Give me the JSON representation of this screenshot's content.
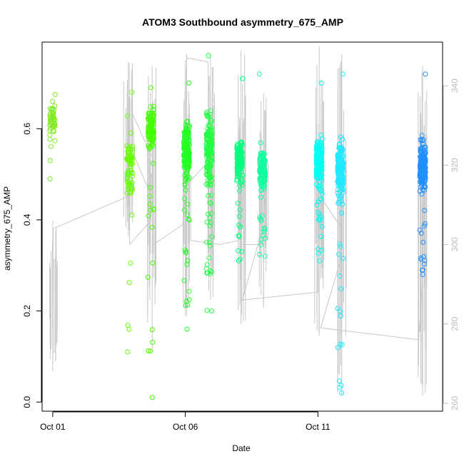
{
  "chart_data": {
    "type": "scatter",
    "title": "ATOM3 Southbound asymmetry_675_AMP",
    "xlabel": "Date",
    "ylabel": "asymmetry_675_AMP",
    "x_ticks": [
      "Oct 01",
      "Oct 06",
      "Oct 11"
    ],
    "x_tick_days": [
      1,
      6,
      11
    ],
    "xlim_days": [
      0.6,
      15.7
    ],
    "ylim": [
      -0.02,
      0.79
    ],
    "y_ticks": [
      0.0,
      0.2,
      0.4,
      0.6
    ],
    "y_tick_labels": [
      "0.0",
      "0.2",
      "0.4",
      "0.6"
    ],
    "y2_lim": [
      258,
      351
    ],
    "y2_ticks": [
      260,
      280,
      300,
      320,
      340
    ],
    "y2_tick_labels": [
      "260",
      "280",
      "300",
      "320",
      "340"
    ],
    "grid": false,
    "legend": "none",
    "series": [
      {
        "role": "points",
        "axis": "left",
        "colors_by_day": "green-to-blue gradient",
        "clusters": [
          {
            "day": 1.0,
            "color": "#7fea1f",
            "center": 0.62,
            "spread": 0.045,
            "min": 0.49,
            "max": 0.675,
            "n": 45
          },
          {
            "day": 3.9,
            "color": "#66ff00",
            "center": 0.52,
            "spread": 0.11,
            "min": 0.11,
            "max": 0.68,
            "n": 70
          },
          {
            "day": 4.7,
            "color": "#44ff00",
            "center": 0.6,
            "spread": 0.06,
            "min": 0.01,
            "max": 0.69,
            "n": 120
          },
          {
            "day": 6.05,
            "color": "#22ff22",
            "center": 0.55,
            "spread": 0.08,
            "min": 0.16,
            "max": 0.7,
            "n": 180
          },
          {
            "day": 6.9,
            "color": "#22ff44",
            "center": 0.56,
            "spread": 0.1,
            "min": 0.2,
            "max": 0.76,
            "n": 190
          },
          {
            "day": 8.05,
            "color": "#00ff7f",
            "center": 0.53,
            "spread": 0.06,
            "min": 0.31,
            "max": 0.71,
            "n": 160
          },
          {
            "day": 8.9,
            "color": "#11ffa0",
            "center": 0.51,
            "spread": 0.06,
            "min": 0.32,
            "max": 0.72,
            "n": 140
          },
          {
            "day": 11.05,
            "color": "#00fff0",
            "center": 0.53,
            "spread": 0.07,
            "min": 0.31,
            "max": 0.7,
            "n": 180
          },
          {
            "day": 11.85,
            "color": "#20e8ff",
            "center": 0.51,
            "spread": 0.08,
            "min": 0.02,
            "max": 0.72,
            "n": 190
          },
          {
            "day": 14.95,
            "color": "#1e90ff",
            "center": 0.52,
            "spread": 0.07,
            "min": 0.28,
            "max": 0.72,
            "n": 220
          }
        ]
      },
      {
        "role": "gray-line",
        "axis": "right",
        "color": "#c8c8c8",
        "path": [
          [
            1.0,
            270
          ],
          [
            1.0,
            280
          ],
          [
            1.02,
            304
          ],
          [
            3.8,
            312
          ],
          [
            3.9,
            313
          ],
          [
            3.9,
            300
          ],
          [
            4.7,
            306
          ],
          [
            4.72,
            318
          ],
          [
            4.6,
            314
          ],
          [
            4.1,
            322
          ],
          [
            4.0,
            333
          ],
          [
            4.75,
            322
          ],
          [
            4.8,
            300
          ],
          [
            5.9,
            305
          ],
          [
            6.0,
            313
          ],
          [
            6.0,
            346
          ],
          [
            6.1,
            347
          ],
          [
            6.85,
            346
          ],
          [
            6.9,
            335
          ],
          [
            7.0,
            301
          ],
          [
            7.0,
            322
          ],
          [
            6.2,
            316
          ],
          [
            6.2,
            301
          ],
          [
            7.3,
            300
          ],
          [
            8.0,
            301
          ],
          [
            8.0,
            318
          ],
          [
            8.05,
            332
          ],
          [
            8.1,
            300
          ],
          [
            8.9,
            300
          ],
          [
            8.9,
            319
          ],
          [
            9.0,
            320
          ],
          [
            8.95,
            305
          ],
          [
            8.15,
            286
          ],
          [
            11.0,
            288
          ],
          [
            11.0,
            320
          ],
          [
            11.05,
            298
          ],
          [
            11.1,
            312
          ],
          [
            11.8,
            305
          ],
          [
            11.9,
            306
          ],
          [
            11.85,
            296
          ],
          [
            11.1,
            279
          ],
          [
            14.8,
            276
          ],
          [
            14.95,
            292
          ],
          [
            15.0,
            320
          ]
        ],
        "bands": [
          {
            "day": 1.0,
            "min": 268,
            "max": 306
          },
          {
            "day": 3.85,
            "min": 302,
            "max": 346
          },
          {
            "day": 4.75,
            "min": 273,
            "max": 345
          },
          {
            "day": 6.05,
            "min": 282,
            "max": 348
          },
          {
            "day": 6.95,
            "min": 286,
            "max": 348
          },
          {
            "day": 8.1,
            "min": 280,
            "max": 349
          },
          {
            "day": 8.95,
            "min": 284,
            "max": 338
          },
          {
            "day": 11.05,
            "min": 277,
            "max": 350
          },
          {
            "day": 11.9,
            "min": 262,
            "max": 348
          },
          {
            "day": 14.95,
            "min": 262,
            "max": 345
          }
        ]
      }
    ]
  }
}
